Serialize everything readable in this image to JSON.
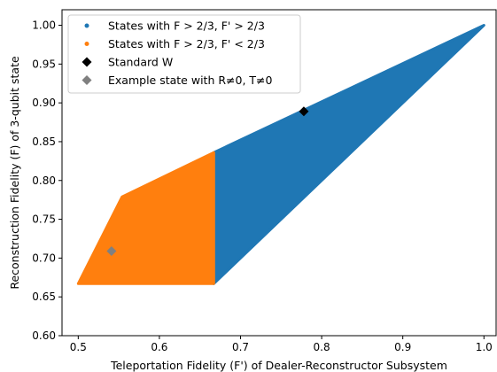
{
  "chart_data": {
    "type": "scatter",
    "xlabel": "Teleportation Fidelity (F') of Dealer-Reconstructor Subsystem",
    "ylabel": "Reconstruction Fidelity (F) of 3-qubit state",
    "xlim": [
      0.48,
      1.015
    ],
    "ylim": [
      0.6,
      1.02
    ],
    "xticks": [
      "0.5",
      "0.6",
      "0.7",
      "0.8",
      "0.9",
      "1.0"
    ],
    "xtick_values": [
      0.5,
      0.6,
      0.7,
      0.8,
      0.9,
      1.0
    ],
    "yticks": [
      "0.60",
      "0.65",
      "0.70",
      "0.75",
      "0.80",
      "0.85",
      "0.90",
      "0.95",
      "1.00"
    ],
    "ytick_values": [
      0.6,
      0.65,
      0.7,
      0.75,
      0.8,
      0.85,
      0.9,
      0.95,
      1.0
    ],
    "grid": false,
    "legend_position": "top-left",
    "series": [
      {
        "name": "States with F > 2/3, F' > 2/3",
        "marker": "point-region",
        "color": "#1f77b4",
        "region": [
          [
            0.667,
            0.836
          ],
          [
            1.0,
            1.0
          ],
          [
            0.667,
            0.667
          ]
        ]
      },
      {
        "name": "States with F > 2/3, F' < 2/3",
        "marker": "point-region",
        "color": "#ff7f0e",
        "region": [
          [
            0.5,
            0.667
          ],
          [
            0.554,
            0.779
          ],
          [
            0.667,
            0.836
          ],
          [
            0.667,
            0.667
          ]
        ]
      },
      {
        "name": "Standard W",
        "marker": "diamond",
        "color": "#000000",
        "points": [
          [
            0.778,
            0.889
          ]
        ]
      },
      {
        "name": "Example state with R≠0, T≠0",
        "marker": "diamond",
        "color": "#808080",
        "points": [
          [
            0.541,
            0.709
          ]
        ]
      }
    ]
  }
}
